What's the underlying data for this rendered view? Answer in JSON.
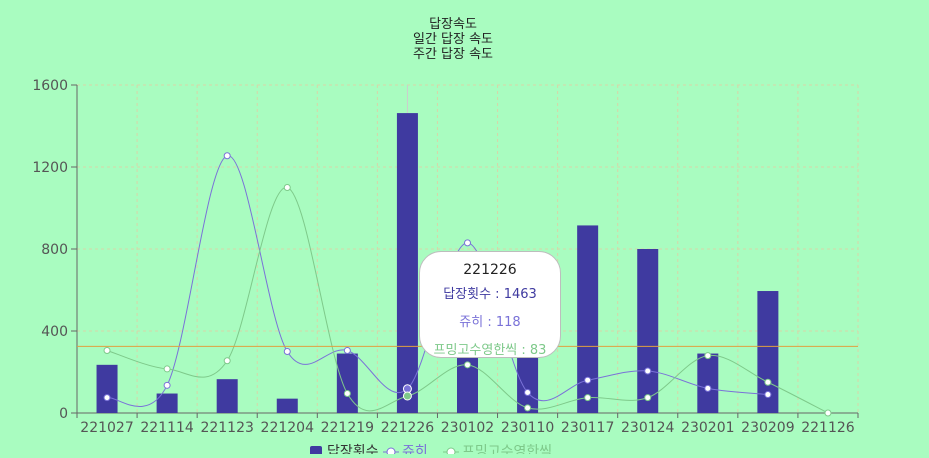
{
  "chart_data": {
    "type": "bar",
    "title": [
      "답장속도",
      "일간 답장 속도",
      "주간 답장 속도"
    ],
    "categories": [
      "221027",
      "221114",
      "221123",
      "221204",
      "221219",
      "221226",
      "230102",
      "230110",
      "230117",
      "230124",
      "230201",
      "230209",
      "221126"
    ],
    "ylim": [
      0,
      1600
    ],
    "yticks": [
      0,
      400,
      800,
      1200,
      1600
    ],
    "grid": true,
    "reference_line": 325,
    "series": [
      {
        "name": "답장횟수",
        "type": "bar",
        "color": "#3f3aa0",
        "values": [
          235,
          95,
          165,
          70,
          290,
          1463,
          290,
          290,
          915,
          800,
          290,
          595,
          null
        ]
      },
      {
        "name": "쥬히",
        "type": "line",
        "color": "#7a72d8",
        "values": [
          75,
          135,
          1255,
          300,
          305,
          118,
          830,
          100,
          160,
          205,
          120,
          90,
          null
        ]
      },
      {
        "name": "프밍고수영한씩",
        "type": "line",
        "color": "#7ec98a",
        "values": [
          305,
          215,
          255,
          1100,
          95,
          83,
          235,
          25,
          75,
          75,
          280,
          150,
          0
        ]
      }
    ],
    "legend": {
      "position": "bottom",
      "labels": [
        "답장횟수",
        "쥬히",
        "프밍고수영한씩"
      ]
    },
    "tooltip": {
      "title": "221226",
      "rows": [
        {
          "label": "답장횟수 : 1463",
          "color": "#3f3aa0"
        },
        {
          "label": "쥬히 : 118",
          "color": "#7a72d8"
        },
        {
          "label": "프밍고수영한씩 : 83",
          "color": "#7ec98a"
        }
      ]
    }
  }
}
